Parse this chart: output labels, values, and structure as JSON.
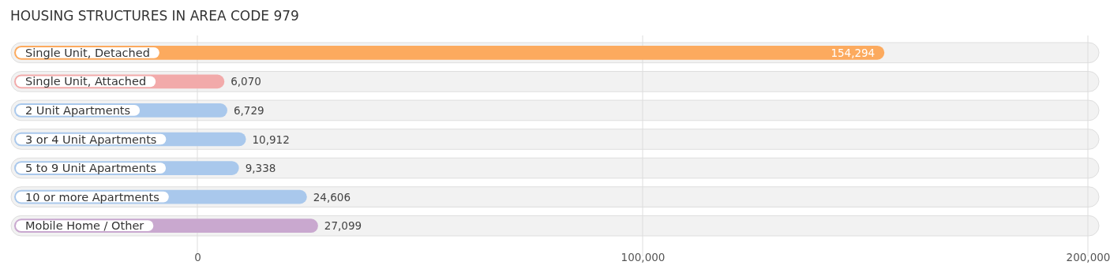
{
  "chart_data": {
    "type": "bar",
    "orientation": "horizontal",
    "title": "HOUSING STRUCTURES IN AREA CODE 979",
    "categories": [
      "Single Unit, Detached",
      "Single Unit, Attached",
      "2 Unit Apartments",
      "3 or 4 Unit Apartments",
      "5 to 9 Unit Apartments",
      "10 or more Apartments",
      "Mobile Home / Other"
    ],
    "values": [
      154294,
      6070,
      6729,
      10912,
      9338,
      24606,
      27099
    ],
    "colors": [
      "#fcaa5e",
      "#f2aaaa",
      "#a9c8ec",
      "#a9c8ec",
      "#a9c8ec",
      "#a9c8ec",
      "#c9a8cf"
    ],
    "xlim": [
      0,
      200000
    ],
    "xticks": [
      0,
      {
        "value": 100000,
        "label": "100,000"
      },
      {
        "value": 200000,
        "label": "200,000"
      }
    ],
    "value_labels": [
      "154,294",
      "6,070",
      "6,729",
      "10,912",
      "9,338",
      "24,606",
      "27,099"
    ],
    "grid": "x"
  }
}
